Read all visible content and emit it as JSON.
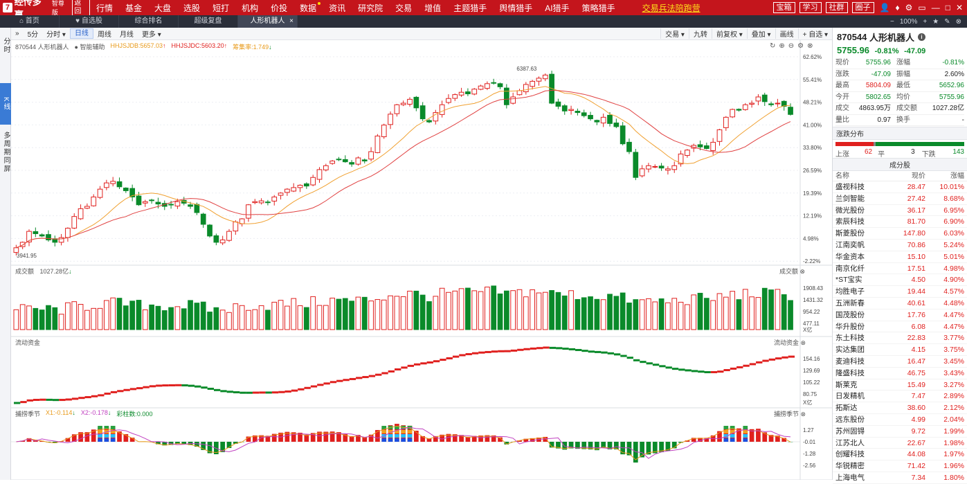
{
  "app": {
    "logo_mark": "7",
    "name": "经传多赢",
    "edition": "智尊版",
    "ret_label": "返回",
    "menu": [
      {
        "label": "行情",
        "dot": false
      },
      {
        "label": "基金",
        "dot": false
      },
      {
        "label": "大盘",
        "dot": false
      },
      {
        "label": "选股",
        "dot": false
      },
      {
        "label": "短打",
        "dot": false
      },
      {
        "label": "机构",
        "dot": false
      },
      {
        "label": "价投",
        "dot": false
      },
      {
        "label": "数据",
        "dot": true
      },
      {
        "label": "资讯",
        "dot": false
      },
      {
        "label": "研究院",
        "dot": false
      },
      {
        "label": "交易",
        "dot": false
      },
      {
        "label": "增值",
        "dot": false
      },
      {
        "label": "主题猎手",
        "dot": false
      },
      {
        "label": "舆情猎手",
        "dot": false
      },
      {
        "label": "AI猎手",
        "dot": false
      },
      {
        "label": "策略猎手",
        "dot": false
      }
    ],
    "promo": "交易兵法陪跑营",
    "top_buttons": [
      "宝箱",
      "学习",
      "社群",
      "圈子"
    ],
    "top_icons": [
      "user-icon",
      "alert-icon",
      "gear-icon",
      "window-icon",
      "minimize-icon",
      "maximize-icon",
      "close-icon"
    ]
  },
  "tabs": [
    {
      "label": "首页",
      "active": false,
      "icon": "home-icon"
    },
    {
      "label": "自选股",
      "active": false,
      "icon": "heart-icon"
    },
    {
      "label": "综合排名",
      "active": false,
      "icon": ""
    },
    {
      "label": "超级复盘",
      "active": false,
      "icon": ""
    },
    {
      "label": "人形机器人",
      "active": true,
      "icon": ""
    }
  ],
  "tab_right": {
    "zoom": "100%",
    "minus": "−",
    "plus": "+"
  },
  "left_strip": [
    {
      "label": "分时",
      "active": false
    },
    {
      "label": "K线",
      "active": true
    },
    {
      "label": "多周期同屏",
      "active": false
    }
  ],
  "chart_toolbar": {
    "collapse": "»",
    "periods": [
      {
        "label": "5分",
        "active": false
      },
      {
        "label": "分时 ▾",
        "active": false
      },
      {
        "label": "日线",
        "active": true
      },
      {
        "label": "周线",
        "active": false
      },
      {
        "label": "月线",
        "active": false
      },
      {
        "label": "更多 ▾",
        "active": false
      }
    ],
    "right_items": [
      "交易 ▾",
      "九转",
      "前复权 ▾",
      "叠加 ▾",
      "画线",
      "+ 自选 ▾"
    ]
  },
  "main_chart": {
    "legend_name": "870544 人形机器人",
    "legend_assist": "智能辅助",
    "ind1": "HHJSJDB:5657.03",
    "ind2": "HHJSJDC:5603.20",
    "ind3": "筹集率:1.749",
    "high_label": "6387.63",
    "low_label": "3941.95",
    "y_ticks": [
      "62.62%",
      "55.41%",
      "48.21%",
      "41.00%",
      "33.80%",
      "26.59%",
      "19.39%",
      "12.19%",
      "4.98%",
      "-2.22%"
    ]
  },
  "volume_panel": {
    "label": "成交额",
    "value": "1027.28亿",
    "right_label": "成交额",
    "y_ticks": [
      "1908.43",
      "1431.32",
      "954.22",
      "477.11"
    ],
    "unit": "X亿"
  },
  "flow_panel": {
    "label": "流动资金",
    "right_label": "流动资金",
    "y_ticks": [
      "154.16",
      "129.69",
      "105.22",
      "80.75"
    ],
    "unit": "X亿"
  },
  "season_panel": {
    "label": "捕捞季节",
    "x1": "X1:-0.114",
    "x2": "X2:-0.178",
    "bar": "彩柱数:0.000",
    "right_label": "捕捞季节",
    "y_ticks": [
      "1.27",
      "-0.01",
      "-1.28",
      "-2.56"
    ]
  },
  "quote": {
    "code": "870544",
    "name": "人形机器人",
    "price": "5755.96",
    "change_pct": "-0.81%",
    "change": "-47.09",
    "rows": [
      {
        "k": "现价",
        "v": "5755.96",
        "vc": "green",
        "k2": "涨幅",
        "v2": "-0.81%",
        "v2c": "green"
      },
      {
        "k": "涨跌",
        "v": "-47.09",
        "vc": "green",
        "k2": "振幅",
        "v2": "2.60%",
        "v2c": ""
      },
      {
        "k": "最高",
        "v": "5804.09",
        "vc": "red",
        "k2": "最低",
        "v2": "5652.96",
        "v2c": "green"
      },
      {
        "k": "今开",
        "v": "5802.65",
        "vc": "green",
        "k2": "均价",
        "v2": "5755.96",
        "v2c": "green"
      },
      {
        "k": "成交量",
        "v": "4863.95万",
        "vc": "",
        "k2": "成交额",
        "v2": "1027.28亿",
        "v2c": ""
      },
      {
        "k": "量比",
        "v": "0.97",
        "vc": "",
        "k2": "换手",
        "v2": "-",
        "v2c": ""
      }
    ],
    "breadth_title": "涨跌分布",
    "up_label": "上涨",
    "up": "62",
    "flat_label": "平",
    "flat": "3",
    "down_label": "下跌",
    "down": "143",
    "components_title": "成分股",
    "comp_headers": [
      "名称",
      "现价",
      "涨幅"
    ],
    "components": [
      {
        "name": "盛视科技",
        "price": "28.47",
        "pct": "10.01%"
      },
      {
        "name": "兰剑智能",
        "price": "27.42",
        "pct": "8.68%"
      },
      {
        "name": "微光股份",
        "price": "36.17",
        "pct": "6.95%"
      },
      {
        "name": "索辰科技",
        "price": "81.70",
        "pct": "6.90%"
      },
      {
        "name": "斯菱股份",
        "price": "147.80",
        "pct": "6.03%"
      },
      {
        "name": "江南奕帆",
        "price": "70.86",
        "pct": "5.24%"
      },
      {
        "name": "华金资本",
        "price": "15.10",
        "pct": "5.01%"
      },
      {
        "name": "南京化纤",
        "price": "17.51",
        "pct": "4.98%"
      },
      {
        "name": "*ST宝实",
        "price": "4.50",
        "pct": "4.90%"
      },
      {
        "name": "均胜电子",
        "price": "19.44",
        "pct": "4.57%"
      },
      {
        "name": "五洲新春",
        "price": "40.61",
        "pct": "4.48%"
      },
      {
        "name": "国茂股份",
        "price": "17.76",
        "pct": "4.47%"
      },
      {
        "name": "华升股份",
        "price": "6.08",
        "pct": "4.47%"
      },
      {
        "name": "东土科技",
        "price": "22.83",
        "pct": "3.77%"
      },
      {
        "name": "实达集团",
        "price": "4.15",
        "pct": "3.75%"
      },
      {
        "name": "麦迪科技",
        "price": "16.47",
        "pct": "3.45%"
      },
      {
        "name": "隆盛科技",
        "price": "46.75",
        "pct": "3.43%"
      },
      {
        "name": "斯莱克",
        "price": "15.49",
        "pct": "3.27%"
      },
      {
        "name": "日发精机",
        "price": "7.47",
        "pct": "2.89%"
      },
      {
        "name": "拓斯达",
        "price": "38.60",
        "pct": "2.12%"
      },
      {
        "name": "远东股份",
        "price": "4.99",
        "pct": "2.04%"
      },
      {
        "name": "苏州固锝",
        "price": "9.72",
        "pct": "1.99%"
      },
      {
        "name": "江苏北人",
        "price": "22.67",
        "pct": "1.98%"
      },
      {
        "name": "创耀科技",
        "price": "44.08",
        "pct": "1.97%"
      },
      {
        "name": "华锐精密",
        "price": "71.42",
        "pct": "1.96%"
      },
      {
        "name": "上海电气",
        "price": "7.34",
        "pct": "1.80%"
      }
    ]
  },
  "colors": {
    "up": "#e0201e",
    "down": "#0a8a2a",
    "brand": "#c4151c",
    "ma1": "#f0a030",
    "ma2": "#e04040"
  },
  "chart_data": {
    "type": "candlestick",
    "price_range": [
      3941.95,
      6387.63
    ],
    "close_path": [
      4050,
      4120,
      4260,
      4230,
      4200,
      4150,
      4120,
      4180,
      4300,
      4450,
      4550,
      4580,
      4700,
      4800,
      4880,
      4900,
      4830,
      4780,
      4700,
      4600,
      4640,
      4660,
      4610,
      4580,
      4600,
      4640,
      4620,
      4580,
      4500,
      4350,
      4200,
      4120,
      4150,
      4260,
      4380,
      4420,
      4600,
      4640,
      4650,
      4630,
      4700,
      4750,
      4800,
      4820,
      4850,
      4840,
      4950,
      5050,
      5100,
      5160,
      5180,
      5150,
      5120,
      5200,
      5160,
      5280,
      5480,
      5620,
      5760,
      5880,
      5900,
      5950,
      5840,
      5700,
      5660,
      5780,
      5880,
      5960,
      6010,
      6040,
      6020,
      6080,
      6120,
      6150,
      6160,
      6110,
      5880,
      5980,
      6060,
      6140,
      6180,
      6220,
      6260,
      5900,
      5860,
      5800,
      5820,
      5780,
      5740,
      5700,
      5660,
      5720,
      5640,
      5600,
      5380,
      5280,
      4950,
      5060,
      5100,
      5090,
      5070,
      5060,
      5100,
      5250,
      5300,
      5360,
      5340,
      5320,
      5400,
      5560,
      5720,
      5820,
      5810,
      5880,
      5900,
      5980,
      5920,
      5880,
      5900,
      5860,
      5756
    ]
  }
}
